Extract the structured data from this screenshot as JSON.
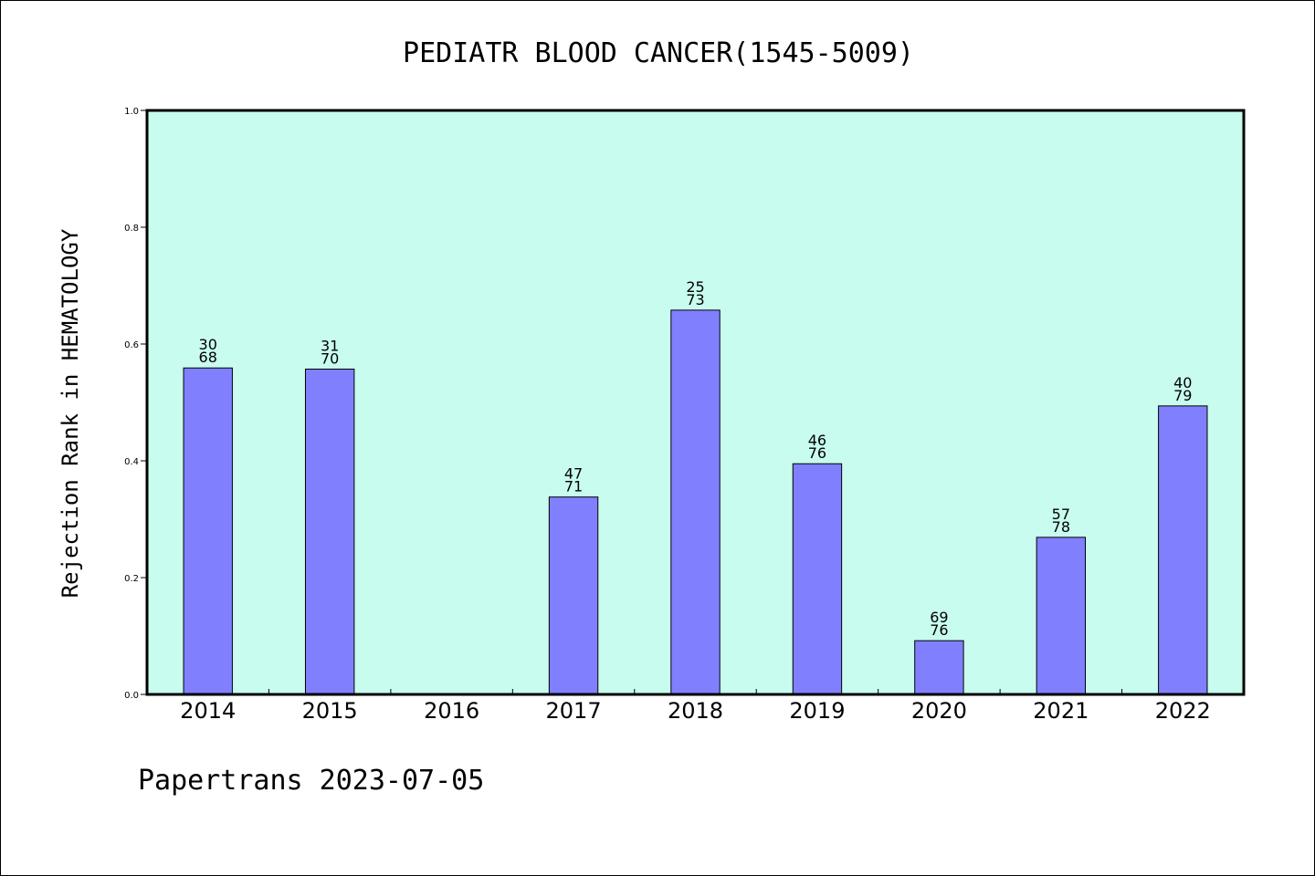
{
  "chart_data": {
    "type": "bar",
    "title": "PEDIATR BLOOD CANCER(1545-5009)",
    "ylabel": "Rejection Rank in HEMATOLOGY",
    "xlabel": "",
    "footer": "Papertrans 2023-07-05",
    "ylim": [
      0,
      1.0
    ],
    "yticks": [
      "0.0",
      "0.2",
      "0.4",
      "0.6",
      "0.8",
      "1.0"
    ],
    "grid": false,
    "categories": [
      "2014",
      "2015",
      "2016",
      "2017",
      "2018",
      "2019",
      "2020",
      "2021",
      "2022"
    ],
    "values": [
      0.559,
      0.557,
      null,
      0.338,
      0.658,
      0.395,
      0.092,
      0.269,
      0.494
    ],
    "label_top": [
      "30",
      "31",
      "",
      "47",
      "25",
      "46",
      "69",
      "57",
      "40"
    ],
    "label_bottom": [
      "68",
      "70",
      "",
      "71",
      "73",
      "76",
      "76",
      "78",
      "79"
    ],
    "colors": {
      "plot_background": "#c8fcee",
      "bar_fill": "#8080ff",
      "bar_stroke": "#000000",
      "axis": "#000000"
    }
  }
}
